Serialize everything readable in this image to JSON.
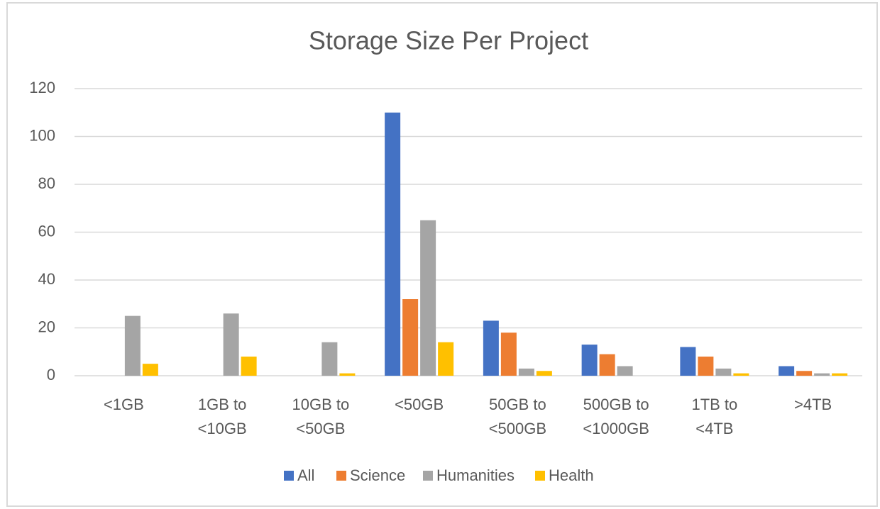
{
  "chart_data": {
    "type": "bar",
    "title": "Storage Size Per Project",
    "categories": [
      "<1GB",
      "1GB to\n<10GB",
      "10GB to\n<50GB",
      "<50GB",
      "50GB to\n<500GB",
      "500GB to\n<1000GB",
      "1TB to\n<4TB",
      ">4TB"
    ],
    "series": [
      {
        "name": "All",
        "color": "#4472c4",
        "values": [
          0,
          0,
          0,
          110,
          23,
          13,
          12,
          4
        ]
      },
      {
        "name": "Science",
        "color": "#ed7d31",
        "values": [
          0,
          0,
          0,
          32,
          18,
          9,
          8,
          2
        ]
      },
      {
        "name": "Humanities",
        "color": "#a5a5a5",
        "values": [
          25,
          26,
          14,
          65,
          3,
          4,
          3,
          1
        ]
      },
      {
        "name": "Health",
        "color": "#ffc000",
        "values": [
          5,
          8,
          1,
          14,
          2,
          0,
          1,
          1
        ]
      }
    ],
    "ylim": [
      0,
      120
    ],
    "yticks": [
      0,
      20,
      40,
      60,
      80,
      100,
      120
    ],
    "grid": true,
    "legend": "bottom"
  }
}
